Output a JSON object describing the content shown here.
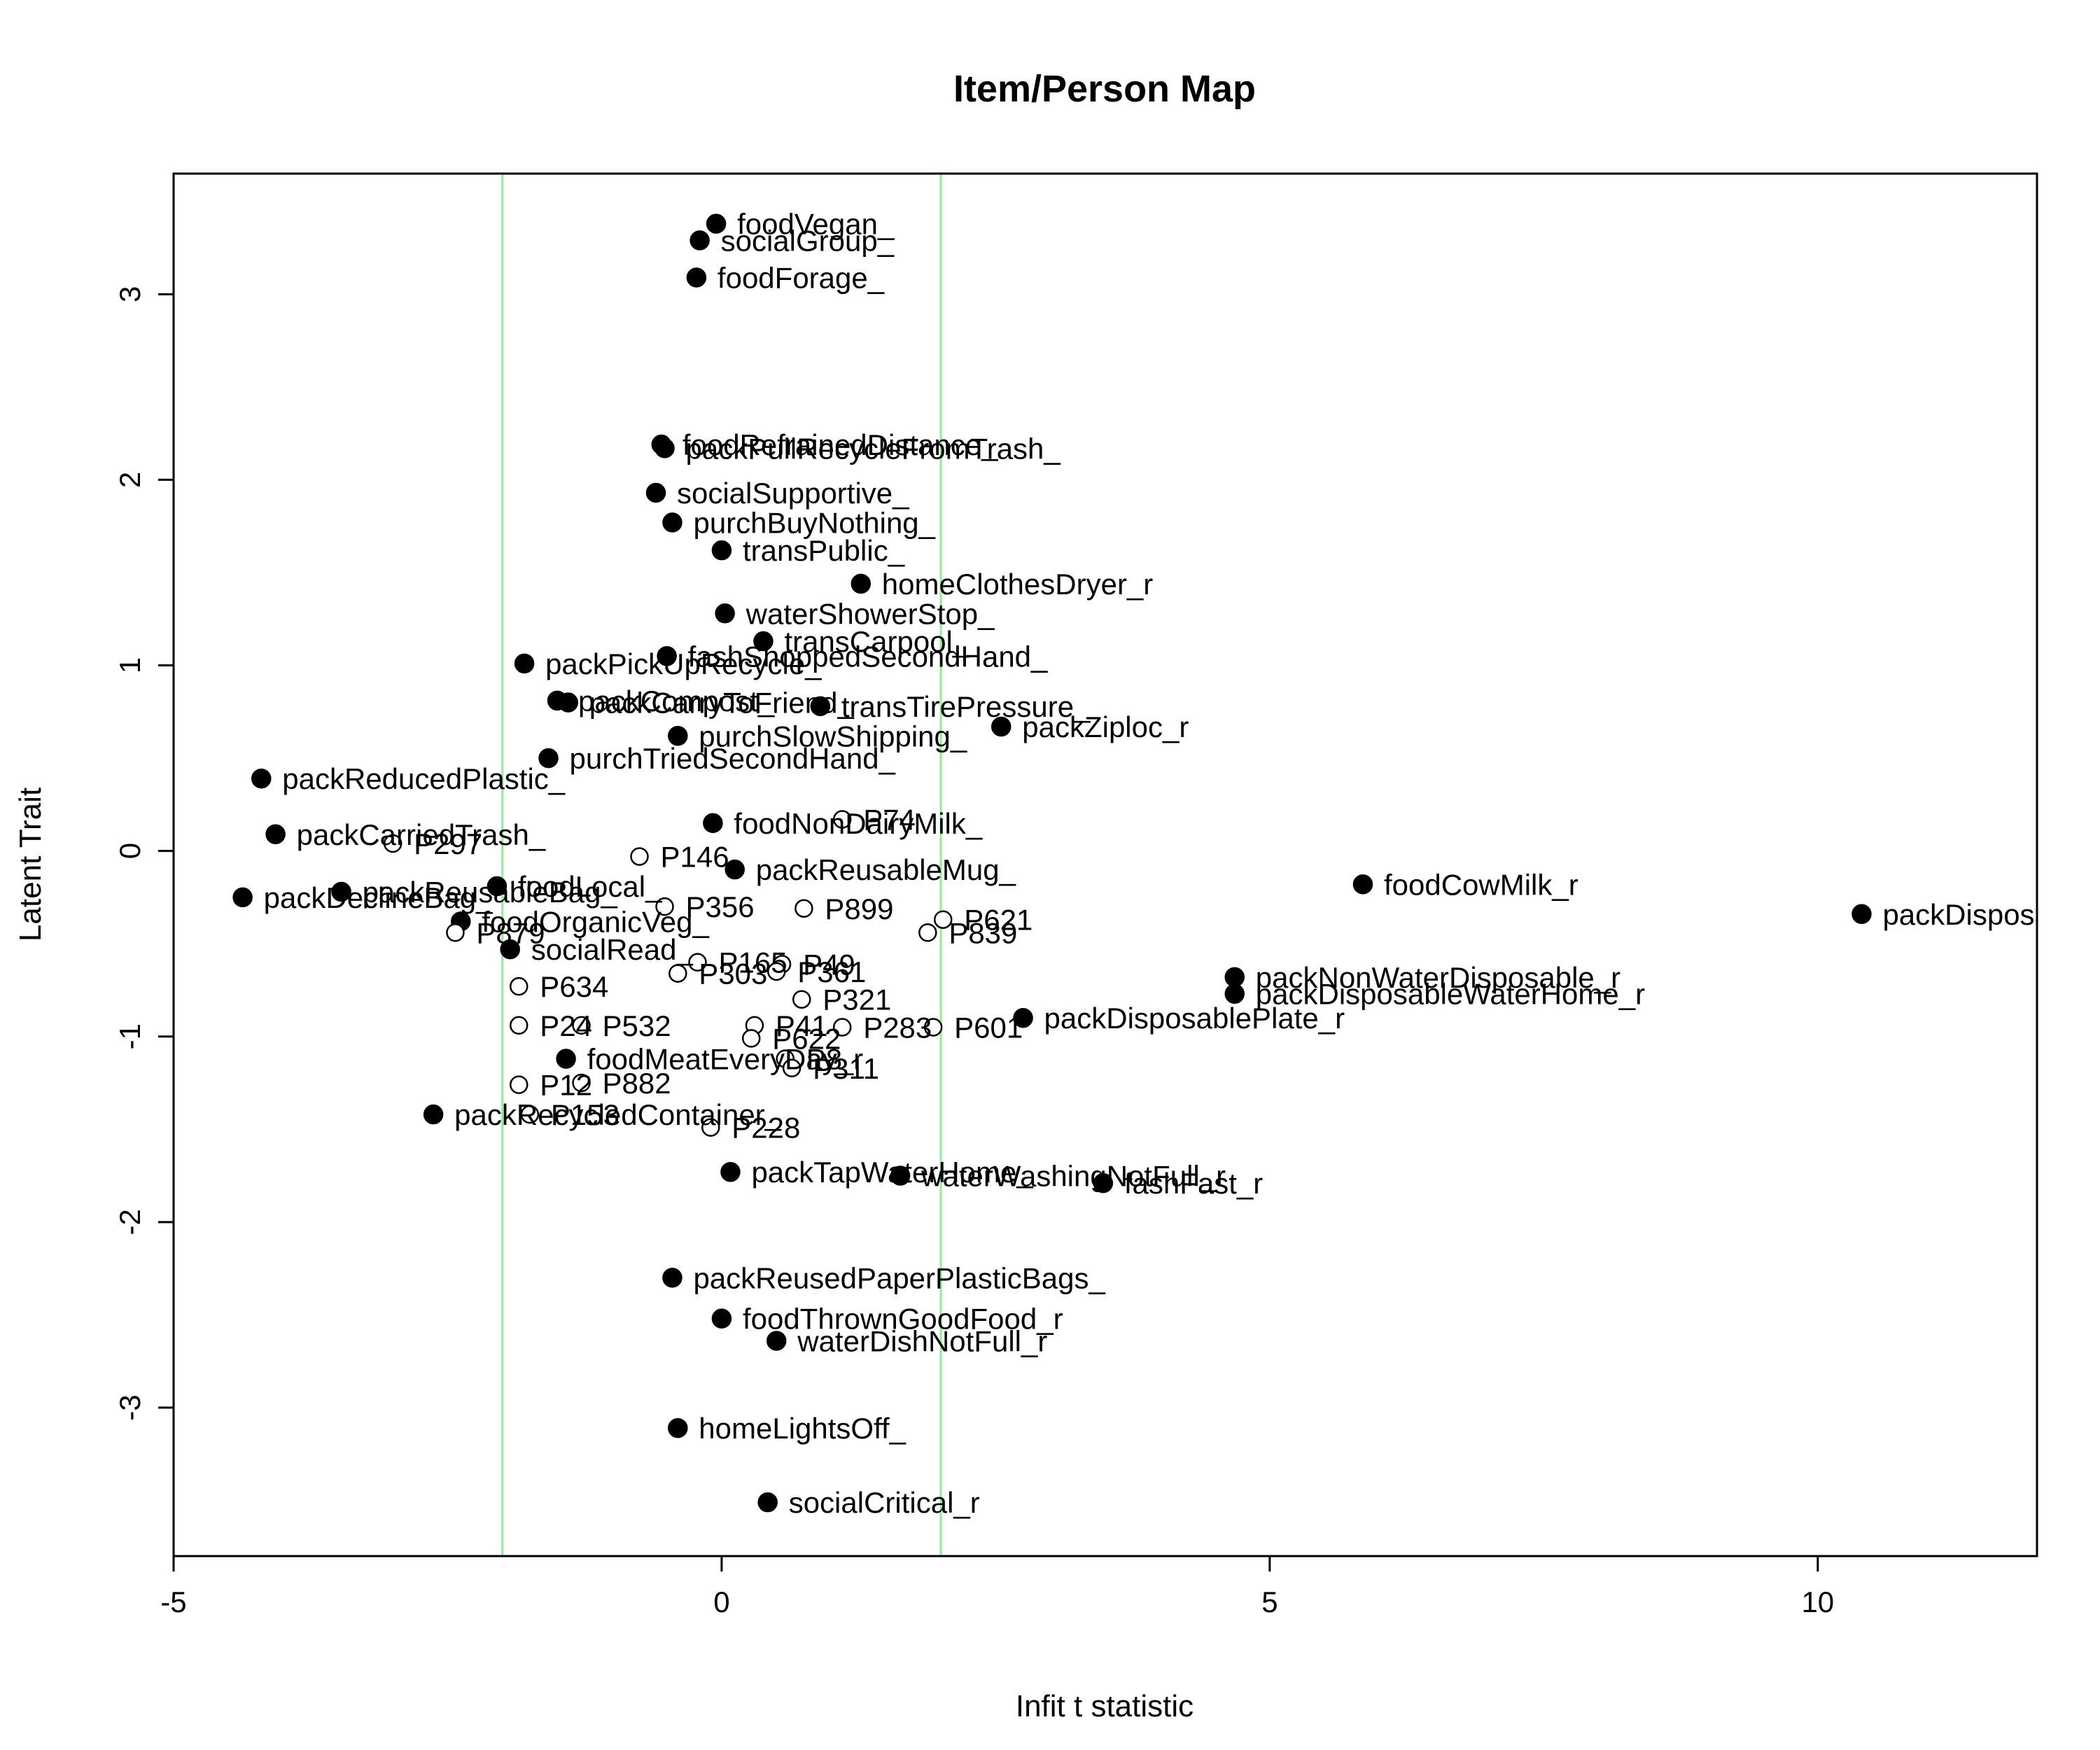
{
  "chart_data": {
    "type": "scatter",
    "title": "Item/Person Map",
    "xlabel": "Infit t statistic",
    "ylabel": "Latent Trait",
    "xlim": [
      -5,
      12
    ],
    "ylim": [
      -3.8,
      3.65
    ],
    "x_ticks": [
      -5,
      0,
      5,
      10
    ],
    "y_ticks": [
      -3,
      -2,
      -1,
      0,
      1,
      2,
      3
    ],
    "reference_lines_x": [
      -2,
      2
    ],
    "colors": {
      "reference_line": "#90EE90",
      "item_point": "#000000",
      "person_point": "#000000"
    },
    "legend": "none",
    "grid": false,
    "series": [
      {
        "name": "items",
        "marker": "filled-circle",
        "points": [
          {
            "label": "foodVegan_",
            "x": -0.05,
            "y": 3.38
          },
          {
            "label": "socialGroup_",
            "x": -0.2,
            "y": 3.29
          },
          {
            "label": "foodForage_",
            "x": -0.23,
            "y": 3.09
          },
          {
            "label": "foodRefrainedDistance_",
            "x": -0.55,
            "y": 2.19
          },
          {
            "label": "packPullRecycleFromTrash_",
            "x": -0.52,
            "y": 2.17
          },
          {
            "label": "socialSupportive_",
            "x": -0.6,
            "y": 1.93
          },
          {
            "label": "purchBuyNothing_",
            "x": -0.45,
            "y": 1.77
          },
          {
            "label": "transPublic_",
            "x": 0.0,
            "y": 1.62
          },
          {
            "label": "homeClothesDryer_r",
            "x": 1.27,
            "y": 1.44
          },
          {
            "label": "waterShowerStop_",
            "x": 0.03,
            "y": 1.28
          },
          {
            "label": "transCarpool_",
            "x": 0.38,
            "y": 1.13
          },
          {
            "label": "fashShoppedSecondHand_",
            "x": -0.5,
            "y": 1.05
          },
          {
            "label": "packPickUpRecycle_",
            "x": -1.8,
            "y": 1.01
          },
          {
            "label": "packCompost_",
            "x": -1.5,
            "y": 0.81
          },
          {
            "label": "packCarryToFriend_",
            "x": -1.4,
            "y": 0.8
          },
          {
            "label": "transTirePressure_",
            "x": 0.9,
            "y": 0.78
          },
          {
            "label": "packZiploc_r",
            "x": 2.55,
            "y": 0.67
          },
          {
            "label": "purchSlowShipping_",
            "x": -0.4,
            "y": 0.62
          },
          {
            "label": "purchTriedSecondHand_",
            "x": -1.58,
            "y": 0.5
          },
          {
            "label": "packReducedPlastic_",
            "x": -4.2,
            "y": 0.39
          },
          {
            "label": "foodNonDairyMilk_",
            "x": -0.08,
            "y": 0.15
          },
          {
            "label": "packCarriedTrash_",
            "x": -4.07,
            "y": 0.09
          },
          {
            "label": "packReusableMug_",
            "x": 0.12,
            "y": -0.1
          },
          {
            "label": "foodCowMilk_r",
            "x": 5.85,
            "y": -0.18
          },
          {
            "label": "packReusableBag_",
            "x": -3.47,
            "y": -0.22
          },
          {
            "label": "foodLocal_",
            "x": -2.05,
            "y": -0.19
          },
          {
            "label": "packDeclineBag_",
            "x": -4.37,
            "y": -0.25
          },
          {
            "label": "packDisposableCup_r",
            "x": 10.4,
            "y": -0.34
          },
          {
            "label": "foodOrganicVeg_",
            "x": -2.38,
            "y": -0.38
          },
          {
            "label": "socialRead_",
            "x": -1.93,
            "y": -0.53
          },
          {
            "label": "packNonWaterDisposable_r",
            "x": 4.68,
            "y": -0.68
          },
          {
            "label": "packDisposableWaterHome_r",
            "x": 4.68,
            "y": -0.77
          },
          {
            "label": "packDisposablePlate_r",
            "x": 2.75,
            "y": -0.9
          },
          {
            "label": "foodMeatEveryDay_r",
            "x": -1.42,
            "y": -1.12
          },
          {
            "label": "packRecycledContainer_",
            "x": -2.63,
            "y": -1.42
          },
          {
            "label": "packTapWaterHome_",
            "x": 0.08,
            "y": -1.73
          },
          {
            "label": "waterWashingNotFull_r",
            "x": 1.63,
            "y": -1.75
          },
          {
            "label": "fashFast_r",
            "x": 3.48,
            "y": -1.79
          },
          {
            "label": "packReusedPaperPlasticBags_",
            "x": -0.45,
            "y": -2.3
          },
          {
            "label": "foodThrownGoodFood_r",
            "x": 0.0,
            "y": -2.52
          },
          {
            "label": "waterDishNotFull_r",
            "x": 0.5,
            "y": -2.64
          },
          {
            "label": "homeLightsOff_",
            "x": -0.4,
            "y": -3.11
          },
          {
            "label": "socialCritical_r",
            "x": 0.42,
            "y": -3.51
          }
        ]
      },
      {
        "name": "persons",
        "marker": "open-circle",
        "points": [
          {
            "label": "P74",
            "x": 1.1,
            "y": 0.17
          },
          {
            "label": "P297",
            "x": -3.0,
            "y": 0.04
          },
          {
            "label": "P146",
            "x": -0.75,
            "y": -0.03
          },
          {
            "label": "P356",
            "x": -0.52,
            "y": -0.3
          },
          {
            "label": "P899",
            "x": 0.75,
            "y": -0.31
          },
          {
            "label": "P621",
            "x": 2.02,
            "y": -0.37
          },
          {
            "label": "P839",
            "x": 1.88,
            "y": -0.44
          },
          {
            "label": "P879",
            "x": -2.43,
            "y": -0.44
          },
          {
            "label": "P165",
            "x": -0.22,
            "y": -0.6
          },
          {
            "label": "P49",
            "x": 0.55,
            "y": -0.61
          },
          {
            "label": "P303",
            "x": -0.4,
            "y": -0.66
          },
          {
            "label": "P361",
            "x": 0.5,
            "y": -0.65
          },
          {
            "label": "P634",
            "x": -1.85,
            "y": -0.73
          },
          {
            "label": "P321",
            "x": 0.73,
            "y": -0.8
          },
          {
            "label": "P24",
            "x": -1.85,
            "y": -0.94
          },
          {
            "label": "P532",
            "x": -1.28,
            "y": -0.94
          },
          {
            "label": "P41",
            "x": 0.3,
            "y": -0.94
          },
          {
            "label": "P283",
            "x": 1.1,
            "y": -0.95
          },
          {
            "label": "P601",
            "x": 1.93,
            "y": -0.95
          },
          {
            "label": "P622",
            "x": 0.27,
            "y": -1.01
          },
          {
            "label": "P8",
            "x": 0.58,
            "y": -1.12
          },
          {
            "label": "P311",
            "x": 0.64,
            "y": -1.17
          },
          {
            "label": "P12",
            "x": -1.85,
            "y": -1.26
          },
          {
            "label": "P882",
            "x": -1.28,
            "y": -1.25
          },
          {
            "label": "P153",
            "x": -1.75,
            "y": -1.42
          },
          {
            "label": "P228",
            "x": -0.1,
            "y": -1.49
          }
        ]
      }
    ]
  }
}
